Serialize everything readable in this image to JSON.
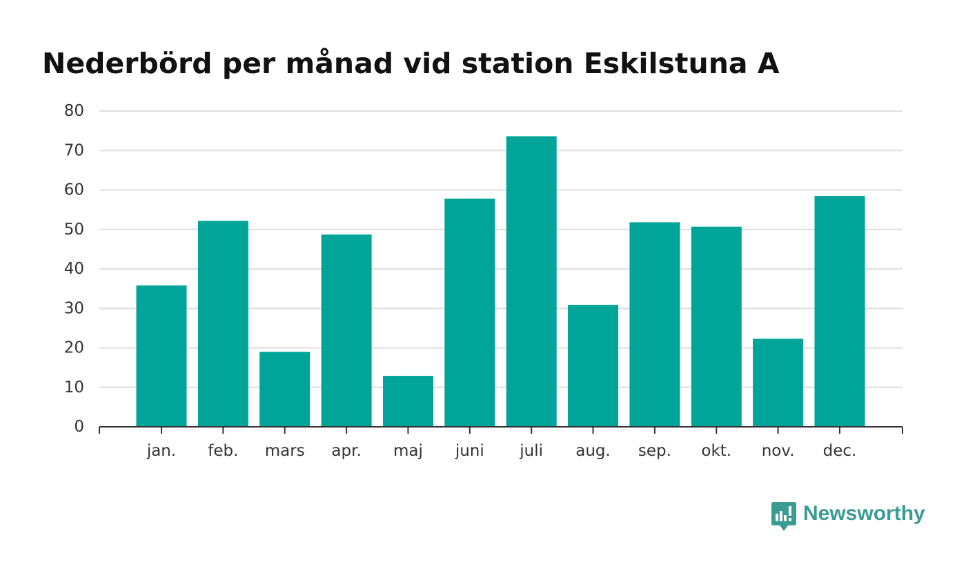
{
  "chart_data": {
    "type": "bar",
    "title": "Nederbörd per månad vid station Eskilstuna A",
    "xlabel": "",
    "ylabel": "",
    "categories": [
      "jan.",
      "feb.",
      "mars",
      "apr.",
      "maj",
      "juni",
      "juli",
      "aug.",
      "sep.",
      "okt.",
      "nov.",
      "dec."
    ],
    "values": [
      35.8,
      52.2,
      19.0,
      48.7,
      12.9,
      57.8,
      73.6,
      30.9,
      51.8,
      50.7,
      22.3,
      58.5
    ],
    "ylim": [
      0,
      80
    ],
    "yticks": [
      "0",
      "10",
      "20",
      "30",
      "40",
      "50",
      "60",
      "70",
      "80"
    ],
    "grid": true,
    "legend": "none",
    "colors": {
      "bar": "#00a499",
      "grid": "#dddddd",
      "axis": "#333333",
      "tick_label": "#333333",
      "title": "#111111"
    }
  },
  "branding": {
    "logo_text": "Newsworthy",
    "logo_icon": "newsworthy-logo-icon",
    "color": "#3a9b93"
  }
}
